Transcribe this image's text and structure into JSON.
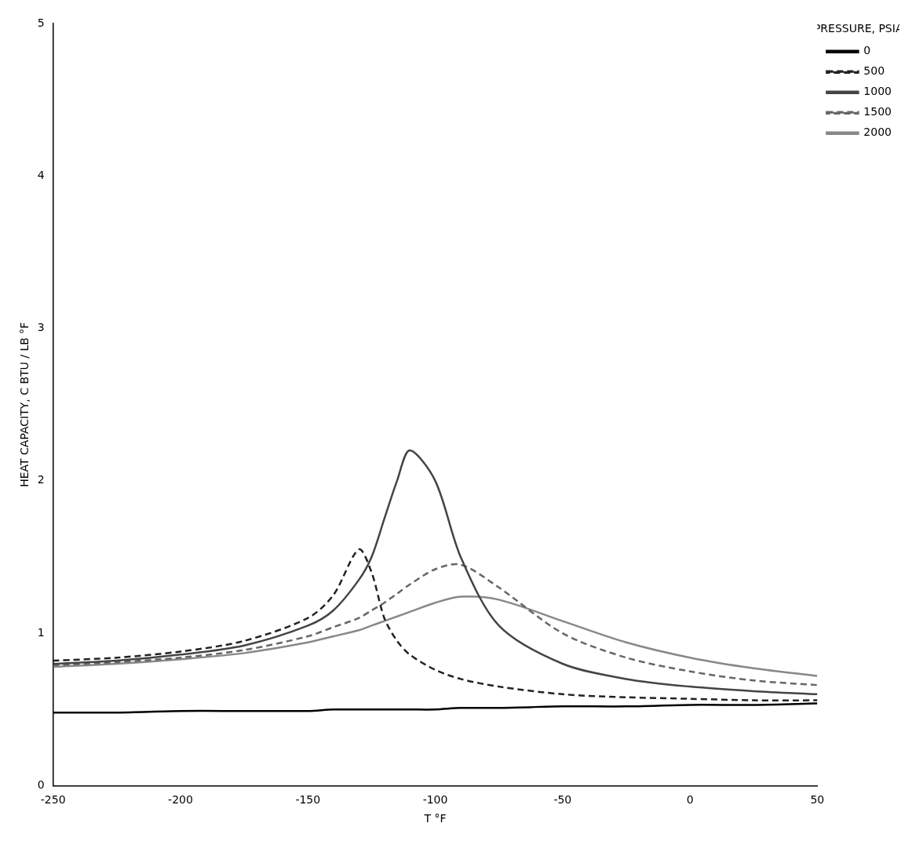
{
  "chart_data": {
    "type": "line",
    "x_label": "T °F",
    "y_label": "HEAT CAPACITY, C BTU / LB °F",
    "legend_title": "PRESSURE, PSIA",
    "x": [
      -250,
      -225,
      -200,
      -175,
      -150,
      -140,
      -130,
      -125,
      -120,
      -115,
      -110,
      -100,
      -90,
      -75,
      -50,
      -25,
      0,
      25,
      50
    ],
    "series": [
      {
        "name": "0",
        "color": "#000000",
        "line_style": "solid",
        "values": [
          0.48,
          0.48,
          0.49,
          0.49,
          0.49,
          0.5,
          0.5,
          0.5,
          0.5,
          0.5,
          0.5,
          0.5,
          0.51,
          0.51,
          0.52,
          0.52,
          0.53,
          0.53,
          0.54
        ]
      },
      {
        "name": "500",
        "color": "#222222",
        "line_style": "dashed",
        "values": [
          0.82,
          0.84,
          0.88,
          0.95,
          1.1,
          1.25,
          1.55,
          1.4,
          1.1,
          0.95,
          0.86,
          0.76,
          0.7,
          0.65,
          0.6,
          0.58,
          0.57,
          0.56,
          0.56
        ]
      },
      {
        "name": "1000",
        "color": "#444444",
        "line_style": "solid",
        "values": [
          0.8,
          0.82,
          0.86,
          0.92,
          1.05,
          1.15,
          1.35,
          1.5,
          1.75,
          2.0,
          2.2,
          2.0,
          1.5,
          1.05,
          0.8,
          0.7,
          0.65,
          0.62,
          0.6
        ]
      },
      {
        "name": "1500",
        "color": "#666666",
        "line_style": "dashed",
        "values": [
          0.79,
          0.81,
          0.84,
          0.89,
          0.98,
          1.04,
          1.1,
          1.15,
          1.2,
          1.26,
          1.32,
          1.42,
          1.45,
          1.3,
          1.0,
          0.84,
          0.75,
          0.69,
          0.66
        ]
      },
      {
        "name": "2000",
        "color": "#888888",
        "line_style": "solid",
        "values": [
          0.78,
          0.8,
          0.83,
          0.87,
          0.94,
          0.98,
          1.02,
          1.05,
          1.08,
          1.11,
          1.14,
          1.2,
          1.24,
          1.22,
          1.08,
          0.94,
          0.84,
          0.77,
          0.72
        ]
      }
    ],
    "xlim": [
      -250,
      50
    ],
    "xticks": [
      -250,
      -200,
      -150,
      -100,
      -50,
      0,
      50
    ],
    "ylim": [
      0,
      5
    ],
    "yticks": [
      0,
      1,
      2,
      3,
      4,
      5
    ],
    "grid": false,
    "legend": "right"
  }
}
